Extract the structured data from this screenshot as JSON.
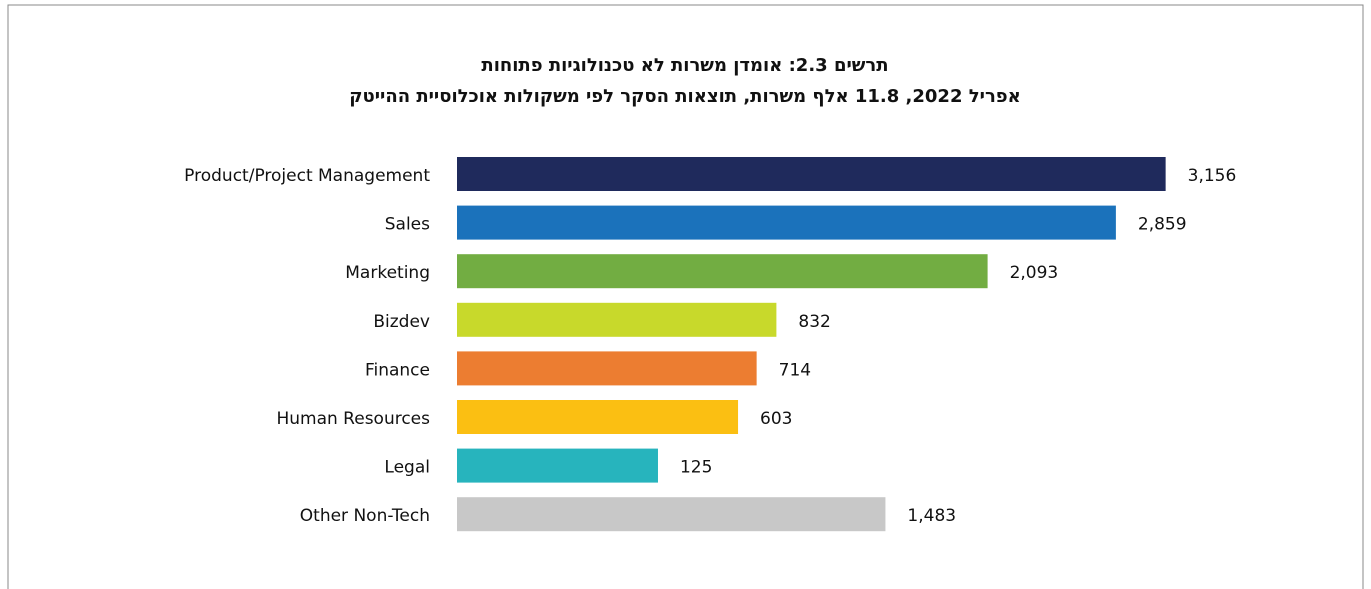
{
  "chart_data": {
    "type": "bar",
    "orientation": "horizontal",
    "title": "תרשים 2.3: אומדן משרות לא טכנולוגיות פתוחות",
    "subtitle": "אפריל 2022, 11.8 אלף משרות, תוצאות הסקר לפי משקולות אוכלוסיית ההייטק",
    "categories": [
      "Product/Project Management",
      "Sales",
      "Marketing",
      "Bizdev",
      "Finance",
      "Human Resources",
      "Legal",
      "Other Non-Tech"
    ],
    "values": [
      3156,
      2859,
      2093,
      832,
      714,
      603,
      125,
      1483
    ],
    "value_labels": [
      "3,156",
      "2,859",
      "2,093",
      "832",
      "714",
      "603",
      "125",
      "1,483"
    ],
    "colors": [
      "#1f2a5c",
      "#1b72bb",
      "#72ad42",
      "#c8d92b",
      "#ec7d31",
      "#fbbf12",
      "#27b4bd",
      "#c8c8c8"
    ],
    "xlim": [
      -1075,
      3200
    ]
  }
}
